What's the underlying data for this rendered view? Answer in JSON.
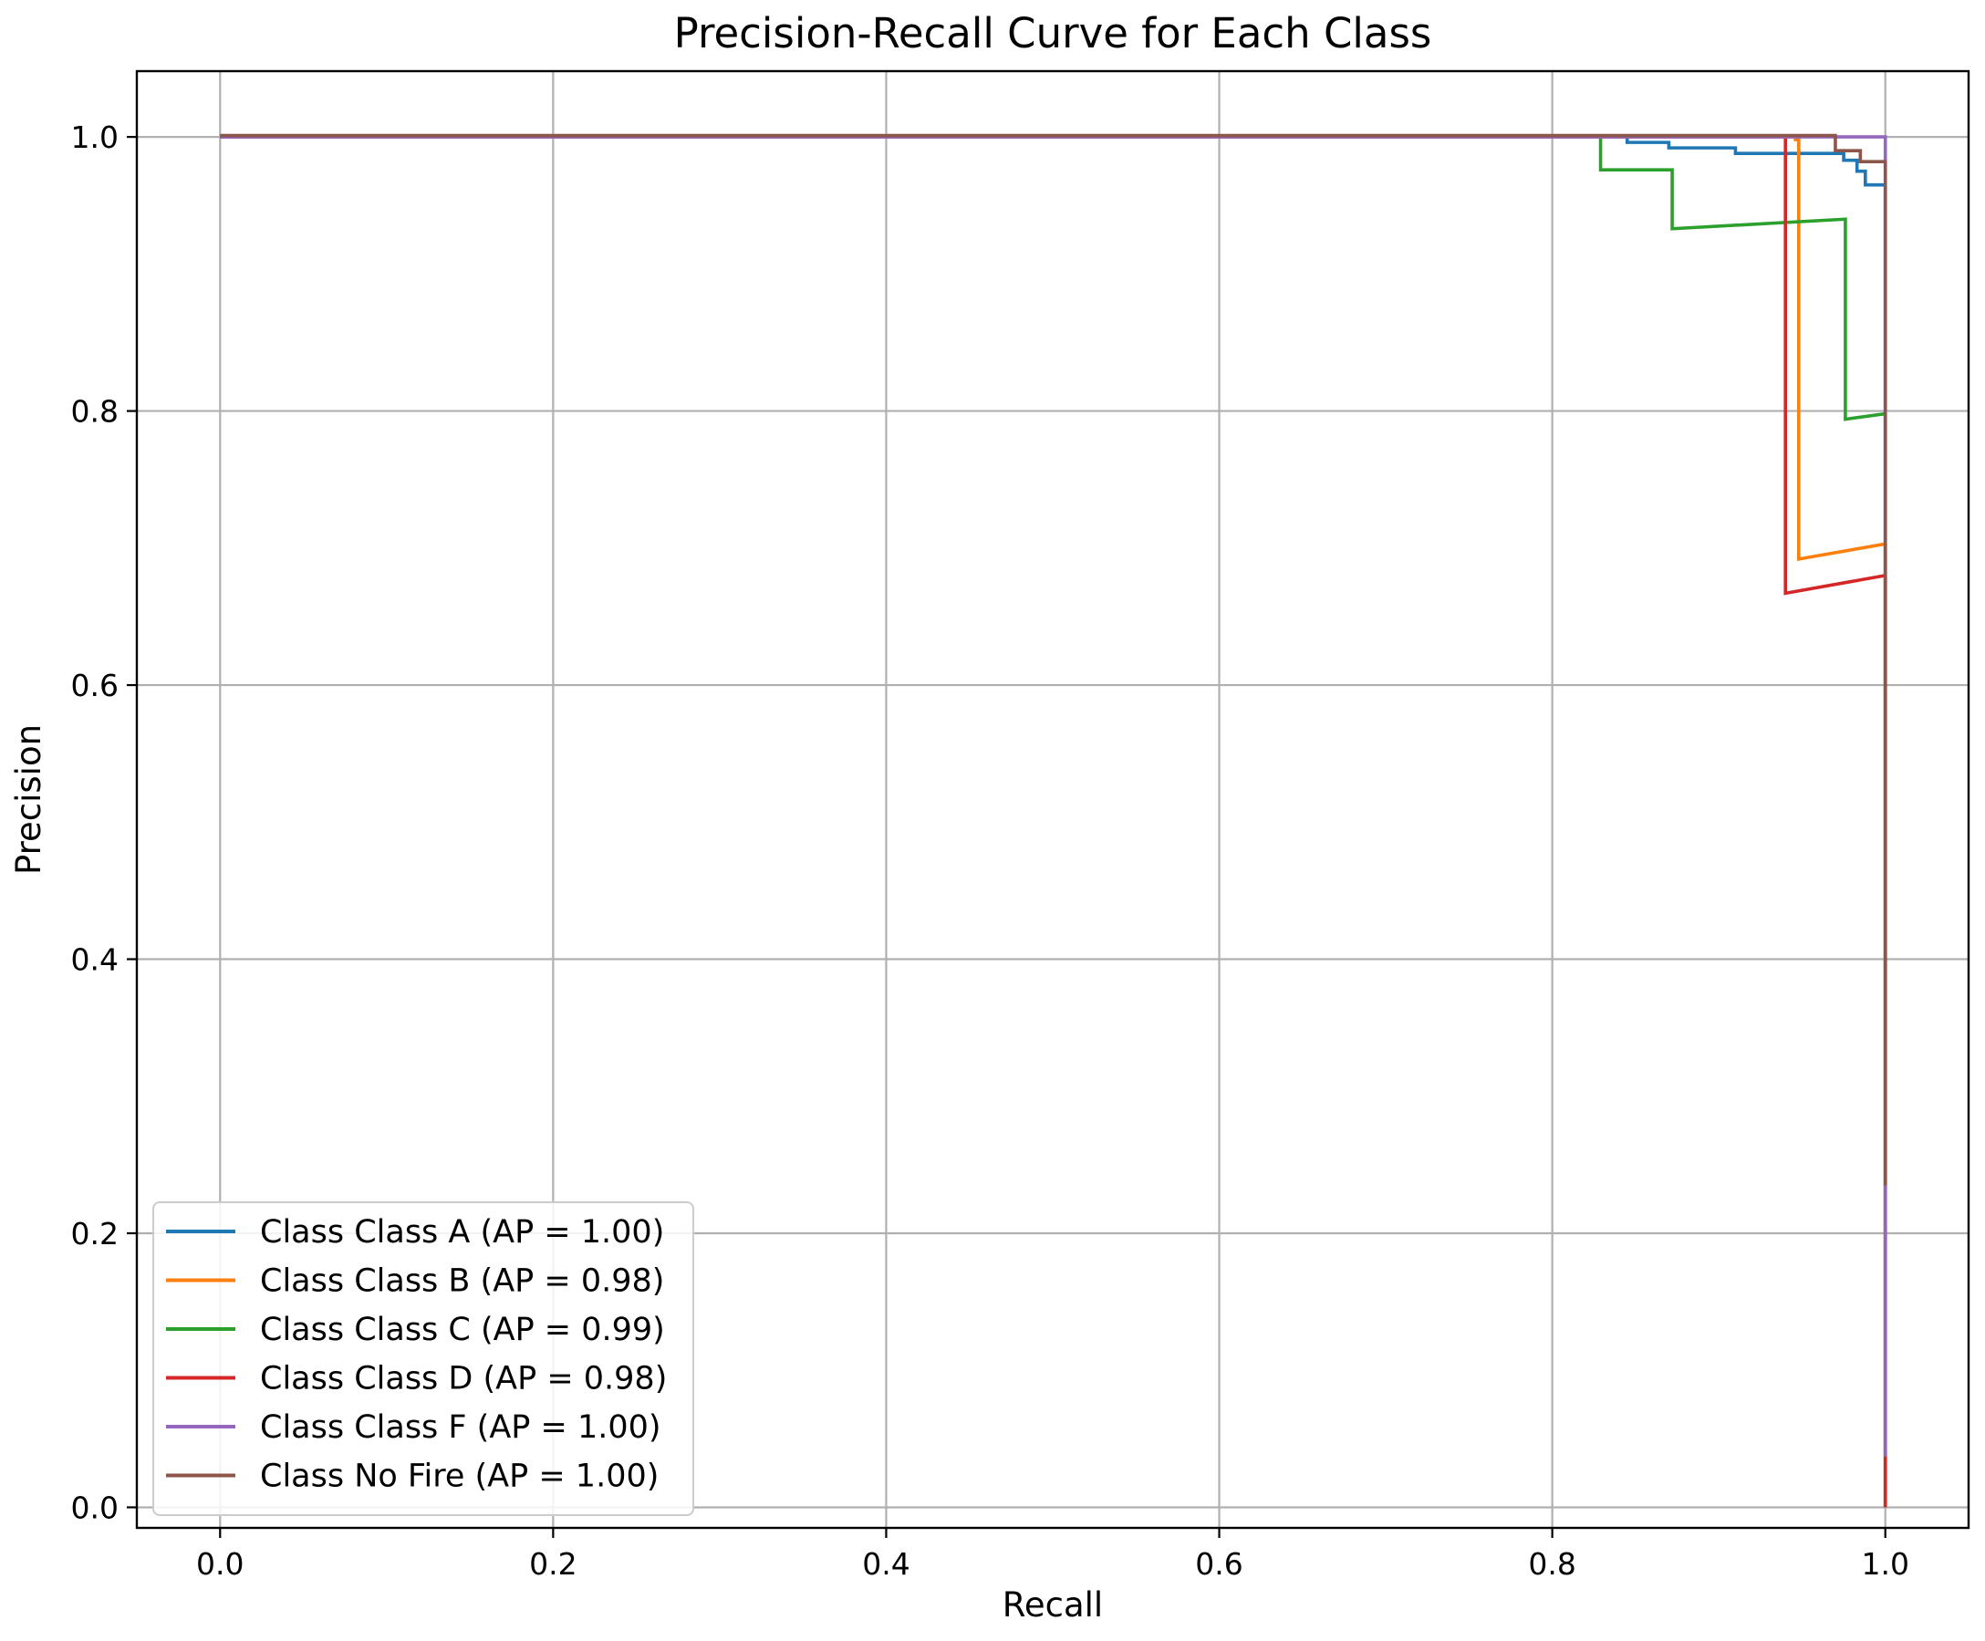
{
  "chart_data": {
    "type": "line",
    "title": "Precision-Recall Curve for Each Class",
    "xlabel": "Recall",
    "ylabel": "Precision",
    "xlim": [
      -0.05,
      1.05
    ],
    "ylim": [
      -0.015,
      1.048
    ],
    "xticks": [
      0.0,
      0.2,
      0.4,
      0.6,
      0.8,
      1.0
    ],
    "xtick_labels": [
      "0.0",
      "0.2",
      "0.4",
      "0.6",
      "0.8",
      "1.0"
    ],
    "yticks": [
      0.0,
      0.2,
      0.4,
      0.6,
      0.8,
      1.0
    ],
    "ytick_labels": [
      "0.0",
      "0.2",
      "0.4",
      "0.6",
      "0.8",
      "1.0"
    ],
    "grid": true,
    "legend_position": "lower-left",
    "series": [
      {
        "name": "Class Class A (AP = 1.00)",
        "color": "#1f77b4",
        "x": [
          0.0,
          0.845,
          0.845,
          0.87,
          0.87,
          0.91,
          0.91,
          0.975,
          0.975,
          0.983,
          0.983,
          0.988,
          0.988,
          1.0,
          1.0
        ],
        "y": [
          1.0,
          1.0,
          0.996,
          0.996,
          0.992,
          0.992,
          0.988,
          0.988,
          0.983,
          0.983,
          0.975,
          0.975,
          0.965,
          0.965,
          0.0
        ]
      },
      {
        "name": "Class Class B (AP = 0.98)",
        "color": "#ff7f0e",
        "x": [
          0.0,
          0.946,
          0.946,
          0.948,
          0.948,
          1.0,
          1.0
        ],
        "y": [
          1.0,
          1.0,
          0.998,
          0.998,
          0.692,
          0.703,
          0.0
        ]
      },
      {
        "name": "Class Class C (AP = 0.99)",
        "color": "#2ca02c",
        "x": [
          0.0,
          0.829,
          0.829,
          0.872,
          0.872,
          0.976,
          0.976,
          1.0,
          1.0
        ],
        "y": [
          1.0,
          1.0,
          0.976,
          0.976,
          0.933,
          0.94,
          0.794,
          0.798,
          0.0
        ]
      },
      {
        "name": "Class Class D (AP = 0.98)",
        "color": "#d62728",
        "x": [
          0.0,
          0.94,
          0.94,
          1.0,
          1.0
        ],
        "y": [
          1.0,
          1.0,
          0.667,
          0.68,
          0.0
        ]
      },
      {
        "name": "Class Class F (AP = 1.00)",
        "color": "#9467bd",
        "x": [
          0.0,
          1.0,
          1.0
        ],
        "y": [
          1.0,
          1.0,
          0.037
        ]
      },
      {
        "name": "Class No Fire (AP = 1.00)",
        "color": "#8c564b",
        "x": [
          0.0,
          0.97,
          0.97,
          0.985,
          0.985,
          1.0,
          1.0
        ],
        "y": [
          1.001,
          1.001,
          0.99,
          0.99,
          0.982,
          0.982,
          0.235
        ]
      }
    ]
  }
}
